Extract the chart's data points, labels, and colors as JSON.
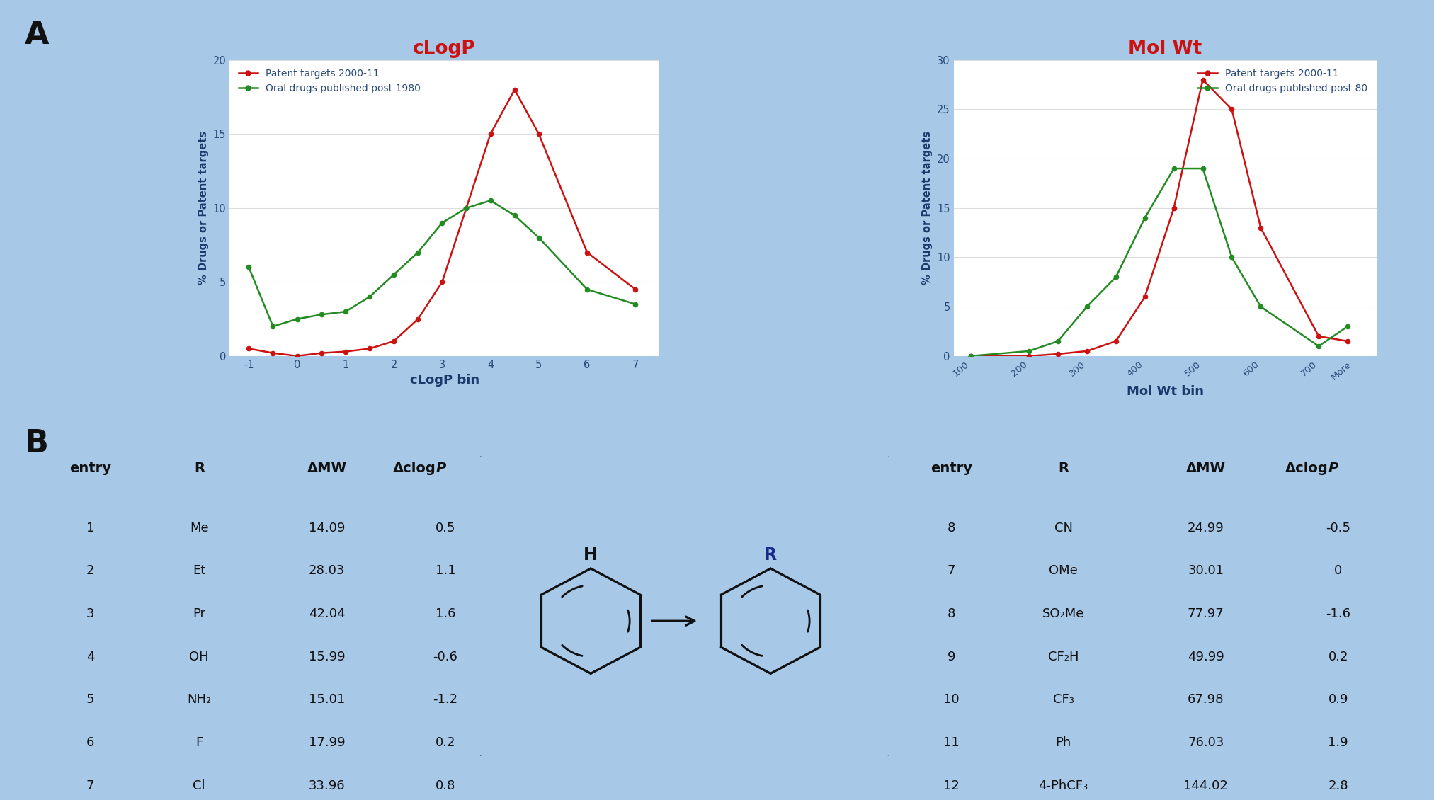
{
  "bg_color": "#a8c8e8",
  "clogp_title": "cLogP",
  "clogp_xlabel": "cLogP bin",
  "clogp_ylabel": "% Drugs or Patent targets",
  "clogp_ylim": [
    0,
    20
  ],
  "clogp_yticks": [
    0,
    5,
    10,
    15,
    20
  ],
  "clogp_red_x": [
    -1,
    -0.5,
    0,
    0.5,
    1,
    1.5,
    2,
    2.5,
    3,
    3.5,
    4,
    4.5,
    5,
    6,
    7
  ],
  "clogp_red_y": [
    0.5,
    0.2,
    0.0,
    0.2,
    0.3,
    0.5,
    1.0,
    2.5,
    5.0,
    10.0,
    15.0,
    18.0,
    15.0,
    7.0,
    4.5
  ],
  "clogp_green_x": [
    -1,
    -0.5,
    0,
    0.5,
    1,
    1.5,
    2,
    2.5,
    3,
    3.5,
    4,
    4.5,
    5,
    6,
    7
  ],
  "clogp_green_y": [
    6.0,
    2.0,
    2.5,
    2.8,
    3.0,
    4.0,
    5.5,
    7.0,
    9.0,
    10.0,
    10.5,
    9.5,
    8.0,
    4.5,
    3.5
  ],
  "molwt_title": "Mol Wt",
  "molwt_xlabel": "Mol Wt bin",
  "molwt_ylabel": "% Drugs or Patent targets",
  "molwt_ylim": [
    0,
    30
  ],
  "molwt_yticks": [
    0,
    5,
    10,
    15,
    20,
    25,
    30
  ],
  "molwt_red_x": [
    100,
    200,
    250,
    300,
    350,
    400,
    450,
    500,
    550,
    600,
    700,
    750
  ],
  "molwt_red_y": [
    0.0,
    0.0,
    0.2,
    0.5,
    1.5,
    6.0,
    15.0,
    28.0,
    25.0,
    13.0,
    2.0,
    1.5
  ],
  "molwt_green_x": [
    100,
    200,
    250,
    300,
    350,
    400,
    450,
    500,
    550,
    600,
    700,
    750
  ],
  "molwt_green_y": [
    0.0,
    0.5,
    1.5,
    5.0,
    8.0,
    14.0,
    19.0,
    19.0,
    10.0,
    5.0,
    1.0,
    3.0
  ],
  "legend_patent": "Patent targets 2000-11",
  "legend_oral_clogp": "Oral drugs published post 1980",
  "legend_oral_molwt": "Oral drugs published post 80",
  "red_color": "#cc1111",
  "green_color": "#228B22",
  "title_red": "#cc1111",
  "axis_label_color": "#1a3a6b",
  "tick_color": "#2a4a7a",
  "grid_color": "#dddddd",
  "table_left_rows": [
    [
      "1",
      "Me",
      "14.09",
      "0.5"
    ],
    [
      "2",
      "Et",
      "28.03",
      "1.1"
    ],
    [
      "3",
      "Pr",
      "42.04",
      "1.6"
    ],
    [
      "4",
      "OH",
      "15.99",
      "-0.6"
    ],
    [
      "5",
      "NH₂",
      "15.01",
      "-1.2"
    ],
    [
      "6",
      "F",
      "17.99",
      "0.2"
    ],
    [
      "7",
      "Cl",
      "33.96",
      "0.8"
    ]
  ],
  "table_right_rows": [
    [
      "8",
      "CN",
      "24.99",
      "-0.5"
    ],
    [
      "7",
      "OMe",
      "30.01",
      "0"
    ],
    [
      "8",
      "SO₂Me",
      "77.97",
      "-1.6"
    ],
    [
      "9",
      "CF₂H",
      "49.99",
      "0.2"
    ],
    [
      "10",
      "CF₃",
      "67.98",
      "0.9"
    ],
    [
      "11",
      "Ph",
      "76.03",
      "1.9"
    ],
    [
      "12",
      "4-PhCF₃",
      "144.02",
      "2.8"
    ]
  ]
}
